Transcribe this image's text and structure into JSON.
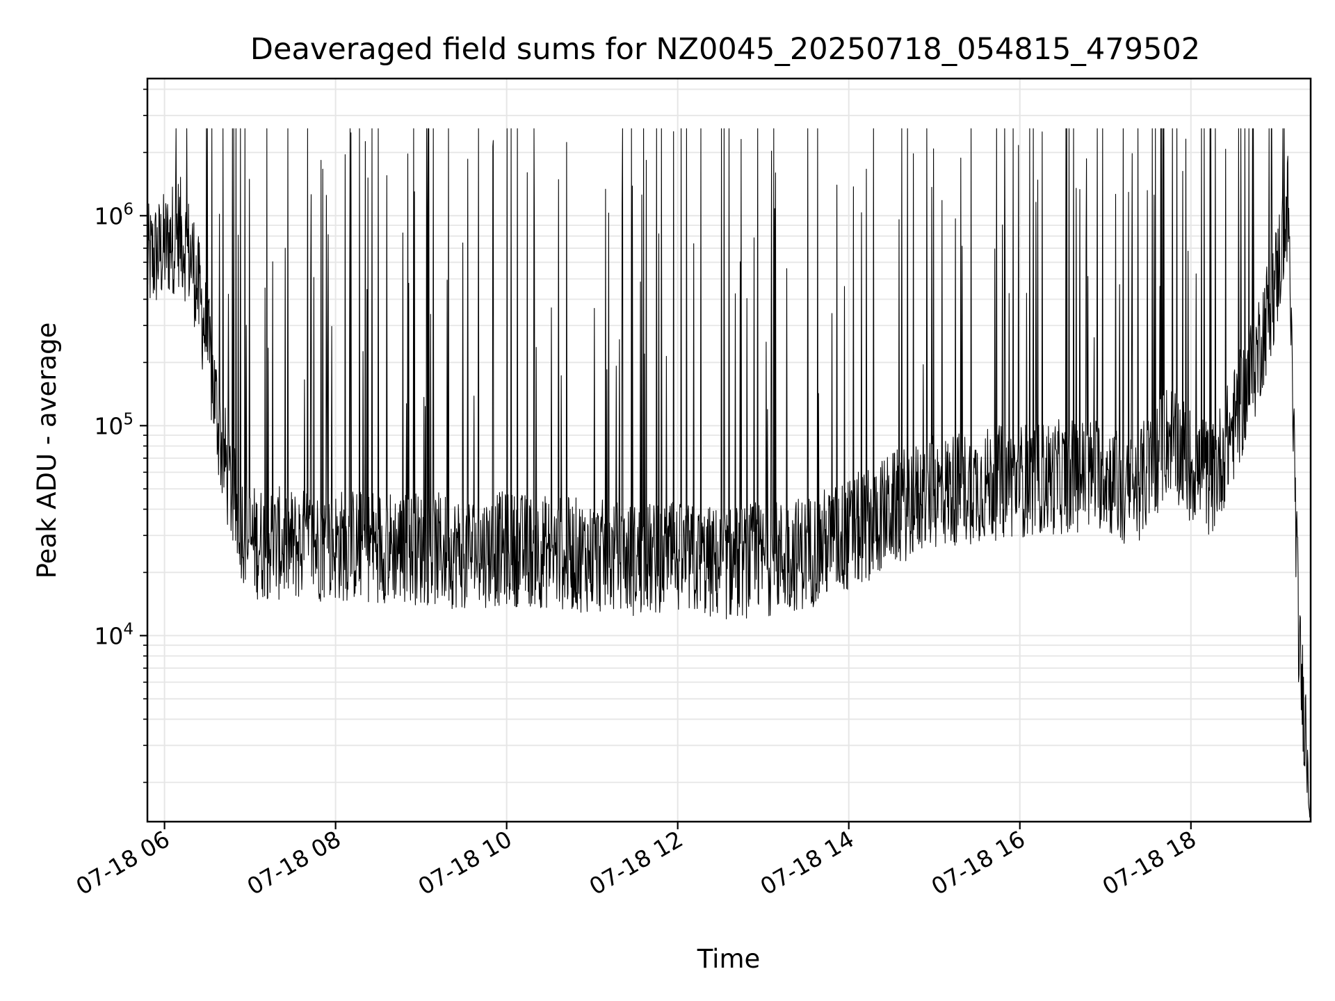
{
  "chart_data": {
    "type": "line",
    "title": "Deaveraged field sums for NZ0045_20250718_054815_479502",
    "xlabel": "Time",
    "ylabel": "Peak ADU - average",
    "yscale": "log",
    "grid": true,
    "legend": "none",
    "line_color": "#000000",
    "grid_color": "#e6e6e6",
    "xlim": [
      "07-18 05:48",
      "07-18 19:24"
    ],
    "ylim": [
      1300,
      4500000
    ],
    "x_ticks": [
      "07-18 06",
      "07-18 08",
      "07-18 10",
      "07-18 12",
      "07-18 14",
      "07-18 16",
      "07-18 18"
    ],
    "y_ticks": [
      {
        "value": 10000,
        "base": "10",
        "exp": "4"
      },
      {
        "value": 100000,
        "base": "10",
        "exp": "5"
      },
      {
        "value": 1000000,
        "base": "10",
        "exp": "6"
      }
    ],
    "series": [
      {
        "x": [
          "07-18 05:48",
          "07-18 06:00",
          "07-18 06:10",
          "07-18 06:20",
          "07-18 06:30",
          "07-18 06:40",
          "07-18 06:50",
          "07-18 07:00",
          "07-18 07:30",
          "07-18 08:00",
          "07-18 08:30",
          "07-18 09:00",
          "07-18 09:30",
          "07-18 10:00",
          "07-18 10:30",
          "07-18 11:00",
          "07-18 11:30",
          "07-18 12:00",
          "07-18 12:30",
          "07-18 13:00",
          "07-18 13:30",
          "07-18 14:00",
          "07-18 14:30",
          "07-18 15:00",
          "07-18 15:30",
          "07-18 16:00",
          "07-18 16:30",
          "07-18 17:00",
          "07-18 17:15",
          "07-18 17:30",
          "07-18 17:45",
          "07-18 18:00",
          "07-18 18:15",
          "07-18 18:30",
          "07-18 18:45",
          "07-18 19:00",
          "07-18 19:08",
          "07-18 19:12",
          "07-18 19:16",
          "07-18 19:20",
          "07-18 19:24"
        ],
        "baseline": [
          600000,
          700000,
          850000,
          600000,
          250000,
          80000,
          40000,
          28000,
          27000,
          27000,
          27000,
          26000,
          25000,
          26000,
          25000,
          24000,
          23000,
          23000,
          22000,
          23000,
          25000,
          30000,
          40000,
          48000,
          52000,
          55000,
          57000,
          60000,
          45000,
          60000,
          90000,
          65000,
          55000,
          100000,
          200000,
          500000,
          1100000,
          100000,
          8000,
          4000,
          1800
        ]
      }
    ]
  }
}
